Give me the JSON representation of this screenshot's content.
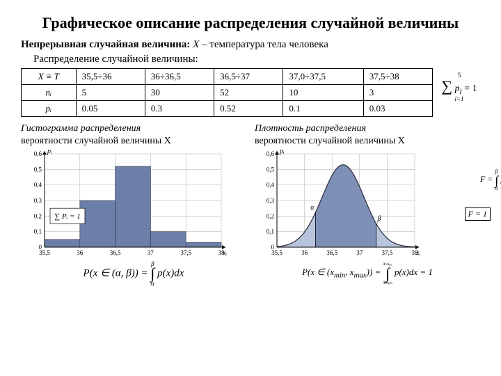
{
  "title": "Графическое описание распределения случайной величины",
  "subtitle_label": "Непрерывная случайная величина:",
  "subtitle_var": "X",
  "subtitle_desc": "– температура тела человека",
  "subtitle2": "Распределение случайной величины:",
  "table": {
    "row_labels": [
      "X ≡ T",
      "nᵢ",
      "pᵢ"
    ],
    "columns": [
      "35,5÷36",
      "36÷36,5",
      "36,5÷37",
      "37,0÷37,5",
      "37,5÷38"
    ],
    "n": [
      "5",
      "30",
      "52",
      "10",
      "3"
    ],
    "p": [
      "0.05",
      "0.3",
      "0.52",
      "0.1",
      "0.03"
    ]
  },
  "sum_formula": "∑ pᵢ = 1",
  "sum_limits_top": "5",
  "sum_limits_bot": "i=1",
  "histogram": {
    "title_line1": "Гистограмма распределения",
    "title_line2": "вероятности случайной величины X",
    "xlim": [
      35.5,
      38
    ],
    "ylim": [
      0,
      0.6
    ],
    "xticks": [
      35.5,
      36,
      36.5,
      37,
      37.5,
      38
    ],
    "yticks": [
      0,
      0.1,
      0.2,
      0.3,
      0.4,
      0.5,
      0.6
    ],
    "ylabel": "pᵢ",
    "xlabel": "xᵢ",
    "bars": [
      {
        "x0": 35.5,
        "x1": 36.0,
        "h": 0.05
      },
      {
        "x0": 36.0,
        "x1": 36.5,
        "h": 0.3
      },
      {
        "x0": 36.5,
        "x1": 37.0,
        "h": 0.52
      },
      {
        "x0": 37.0,
        "x1": 37.5,
        "h": 0.1
      },
      {
        "x0": 37.5,
        "x1": 38.0,
        "h": 0.03
      }
    ],
    "bar_color": "#6b7fa8",
    "axis_color": "#000000",
    "grid_color": "#999999",
    "inset_formula": "∑ Pᵢ = 1",
    "bottom_formula": "P(x ∈ (α, β)) = ∫ p(x)dx",
    "int_top": "β",
    "int_bot": "α"
  },
  "density": {
    "title_line1": "Плотность распределения",
    "title_line2": "вероятности случайной величины X",
    "xlim": [
      35.5,
      38
    ],
    "ylim": [
      0,
      0.6
    ],
    "xticks": [
      35.5,
      36,
      36.5,
      37,
      37.5,
      38
    ],
    "yticks": [
      0,
      0.1,
      0.2,
      0.3,
      0.4,
      0.5,
      0.6
    ],
    "ylabel": "pᵢ",
    "xlabel": "xᵢ",
    "curve_color": "#6b7fa8",
    "fill_color": "#b8c4db",
    "axis_color": "#000000",
    "grid_color": "#999999",
    "mu": 36.7,
    "sigma": 0.38,
    "peak": 0.53,
    "side_formula1": "F = ∫ p(x)dx",
    "side_formula1_top": "β",
    "side_formula1_bot": "α",
    "side_formula2": "F = 1",
    "bottom_formula": "P(x ∈ (xₘᵢₙ, xₘₐₓ)) = ∫ p(x)dx = 1",
    "int_top": "xₘₐₓ",
    "int_bot": "xₘᵢₙ",
    "alpha_x": 36.2,
    "beta_x": 37.3
  }
}
